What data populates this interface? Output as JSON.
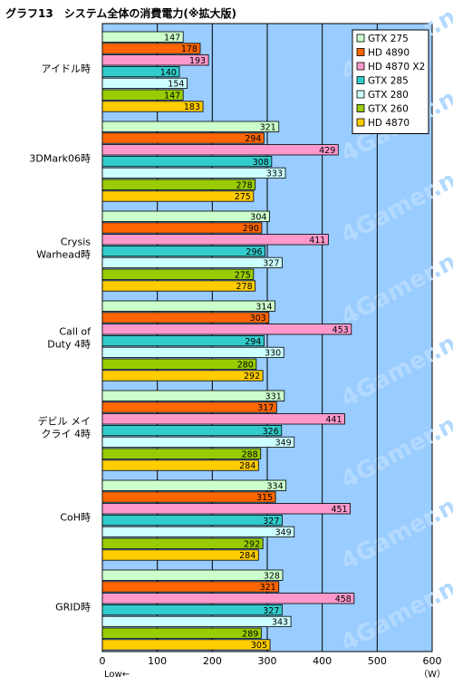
{
  "chart_data": {
    "type": "bar",
    "orientation": "horizontal",
    "title": "グラフ13　システム全体の消費電力(※拡大版)",
    "categories": [
      "アイドル時",
      "3DMark06時",
      "Crysis\nWarhead時",
      "Call of\nDuty 4時",
      "デビル メイ\nクライ 4時",
      "CoH時",
      "GRID時"
    ],
    "series": [
      {
        "name": "GTX 275",
        "color": "#ccffcc",
        "values": [
          147,
          321,
          304,
          314,
          331,
          334,
          328
        ]
      },
      {
        "name": "HD 4890",
        "color": "#ff6600",
        "values": [
          178,
          294,
          290,
          303,
          317,
          315,
          321
        ]
      },
      {
        "name": "HD 4870 X2",
        "color": "#ff99cc",
        "values": [
          193,
          429,
          411,
          453,
          441,
          451,
          458
        ]
      },
      {
        "name": "GTX 285",
        "color": "#33cccc",
        "values": [
          140,
          308,
          296,
          294,
          326,
          327,
          327
        ]
      },
      {
        "name": "GTX 280",
        "color": "#ccffff",
        "values": [
          154,
          333,
          327,
          330,
          349,
          349,
          343
        ]
      },
      {
        "name": "GTX 260",
        "color": "#99cc00",
        "values": [
          147,
          278,
          275,
          280,
          288,
          292,
          289
        ]
      },
      {
        "name": "HD 4870",
        "color": "#ffcc00",
        "values": [
          183,
          275,
          278,
          292,
          284,
          284,
          305
        ]
      }
    ],
    "xlim": [
      0,
      600
    ],
    "xticks": [
      "0",
      "100",
      "200",
      "300",
      "400",
      "500",
      "600"
    ],
    "xlabel_left": "Low←",
    "xlabel_unit": "（W）",
    "grid": true,
    "legend_position": "top-right",
    "plot_background": "#99ccff",
    "watermark": "4Gamer.net"
  }
}
